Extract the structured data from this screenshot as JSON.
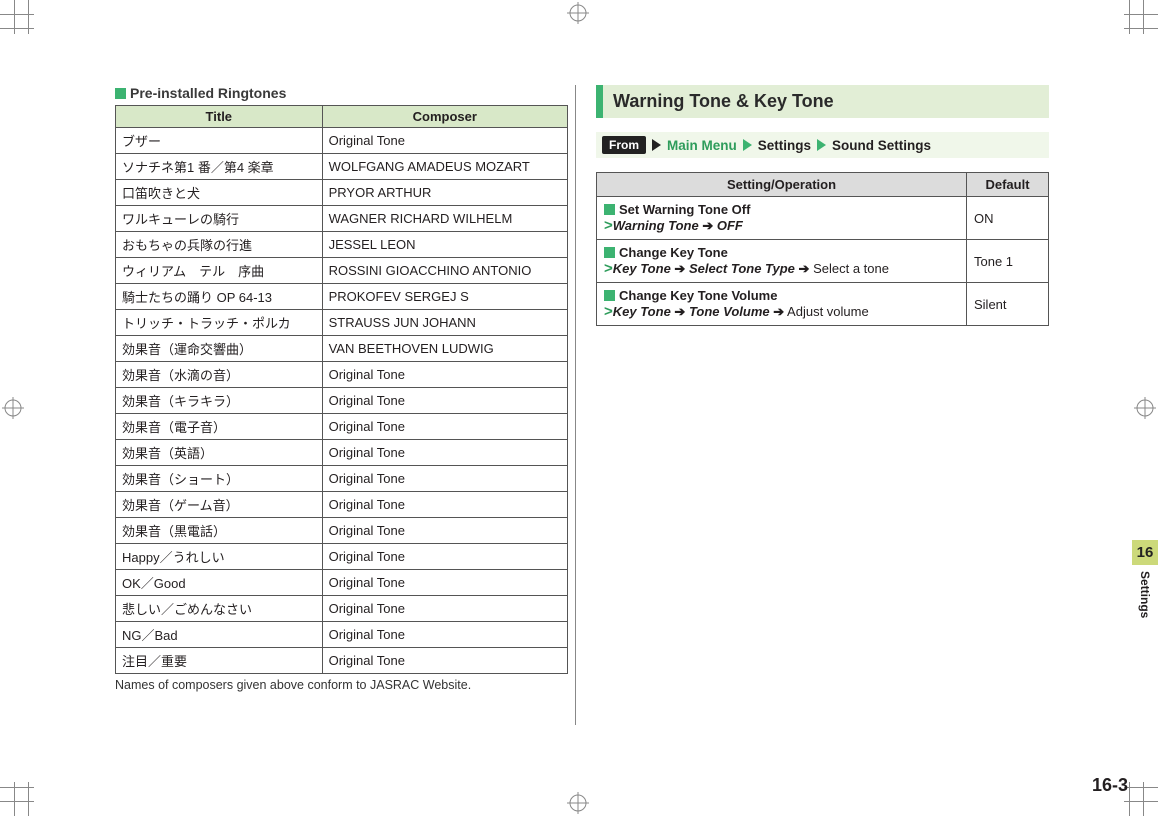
{
  "left": {
    "heading": "Pre-installed Ringtones",
    "th_title": "Title",
    "th_composer": "Composer",
    "rows": [
      {
        "t": "ブザー",
        "c": "Original Tone"
      },
      {
        "t": "ソナチネ第1 番／第4 楽章",
        "c": "WOLFGANG AMADEUS MOZART"
      },
      {
        "t": "口笛吹きと犬",
        "c": "PRYOR ARTHUR"
      },
      {
        "t": "ワルキューレの騎行",
        "c": "WAGNER RICHARD WILHELM"
      },
      {
        "t": "おもちゃの兵隊の行進",
        "c": "JESSEL LEON"
      },
      {
        "t": "ウィリアム　テル　序曲",
        "c": "ROSSINI GIOACCHINO ANTONIO"
      },
      {
        "t": "騎士たちの踊り OP 64-13",
        "c": "PROKOFEV SERGEJ S"
      },
      {
        "t": "トリッチ・トラッチ・ポルカ",
        "c": "STRAUSS JUN JOHANN"
      },
      {
        "t": "効果音（運命交響曲）",
        "c": "VAN BEETHOVEN LUDWIG"
      },
      {
        "t": "効果音（水滴の音）",
        "c": "Original Tone"
      },
      {
        "t": "効果音（キラキラ）",
        "c": "Original Tone"
      },
      {
        "t": "効果音（電子音）",
        "c": "Original Tone"
      },
      {
        "t": "効果音（英語）",
        "c": "Original Tone"
      },
      {
        "t": "効果音（ショート）",
        "c": "Original Tone"
      },
      {
        "t": "効果音（ゲーム音）",
        "c": "Original Tone"
      },
      {
        "t": "効果音（黒電話）",
        "c": "Original Tone"
      },
      {
        "t": "Happy／うれしい",
        "c": "Original Tone"
      },
      {
        "t": "OK／Good",
        "c": "Original Tone"
      },
      {
        "t": "悲しい／ごめんなさい",
        "c": "Original Tone"
      },
      {
        "t": "NG／Bad",
        "c": "Original Tone"
      },
      {
        "t": "注目／重要",
        "c": "Original Tone"
      }
    ],
    "footnote": "Names of composers given above conform to JASRAC Website."
  },
  "right": {
    "section_title": "Warning Tone & Key Tone",
    "from_label": "From",
    "path": {
      "main": "Main Menu",
      "settings": "Settings",
      "sound": "Sound Settings"
    },
    "th_op": "Setting/Operation",
    "th_def": "Default",
    "rows": [
      {
        "title": "Set Warning Tone Off",
        "step_bi_1": "Warning Tone",
        "step_bi_2": "OFF",
        "step_plain": "",
        "default": "ON"
      },
      {
        "title": "Change Key Tone",
        "step_bi_1": "Key Tone",
        "step_bi_2": "Select Tone Type",
        "step_plain": "Select a tone",
        "default": "Tone 1"
      },
      {
        "title": "Change Key Tone Volume",
        "step_bi_1": "Key Tone",
        "step_bi_2": "Tone Volume",
        "step_plain": "Adjust volume",
        "default": "Silent"
      }
    ]
  },
  "tab": {
    "num": "16",
    "label": "Settings"
  },
  "page_num": "16-3",
  "colors": {
    "accent": "#3cb371",
    "header_bg": "#d8e8c8",
    "section_bg": "#e2eed6",
    "from_bg": "#f0f7ea",
    "settings_th_bg": "#dcdcdc",
    "tab_bg": "#ccd97a",
    "border": "#555"
  }
}
